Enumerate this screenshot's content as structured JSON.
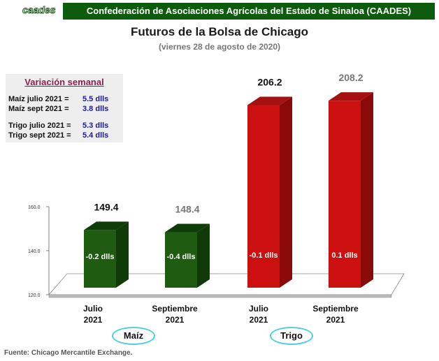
{
  "header": {
    "logo": "caades",
    "org": "Confederación de Asociaciones Agrícolas del Estado de Sinaloa (CAADES)"
  },
  "title": "Futuros de la Bolsa de Chicago",
  "subtitle": "(viernes 28 de agosto de 2020)",
  "variation": {
    "title": "Variación semanal",
    "rows": [
      {
        "label": "Maíz julio 2021 =",
        "value": "5.5 dlls"
      },
      {
        "label": "Maíz sept 2021 =",
        "value": "3.8 dlls"
      },
      {
        "label": "Trigo julio 2021 =",
        "value": "5.3 dlls"
      },
      {
        "label": "Trigo sept 2021 =",
        "value": "5.4 dlls"
      }
    ]
  },
  "groups": {
    "maiz": "Maíz",
    "trigo": "Trigo"
  },
  "footer": "Fuente: Chicago Mercantile Exchange.",
  "colors": {
    "maiz": "#1f5c12",
    "trigo": "#cc1010",
    "header": "#0d5c0d"
  },
  "chart_data": {
    "type": "bar",
    "categories": [
      "Julio 2021",
      "Septiembre 2021",
      "Julio 2021",
      "Septiembre 2021"
    ],
    "values": [
      149.4,
      148.4,
      206.2,
      208.2
    ],
    "value_labels": [
      "149.4",
      "148.4",
      "206.2",
      "208.2"
    ],
    "bar_labels": [
      "-0.2 dlls",
      "-0.4 dlls",
      "-0.1 dlls",
      "0.1 dlls"
    ],
    "groups": [
      "Maíz",
      "Maíz",
      "Trigo",
      "Trigo"
    ],
    "yticks": [
      "120.0",
      "140.0",
      "160.0"
    ],
    "ylim": [
      120,
      160
    ]
  }
}
